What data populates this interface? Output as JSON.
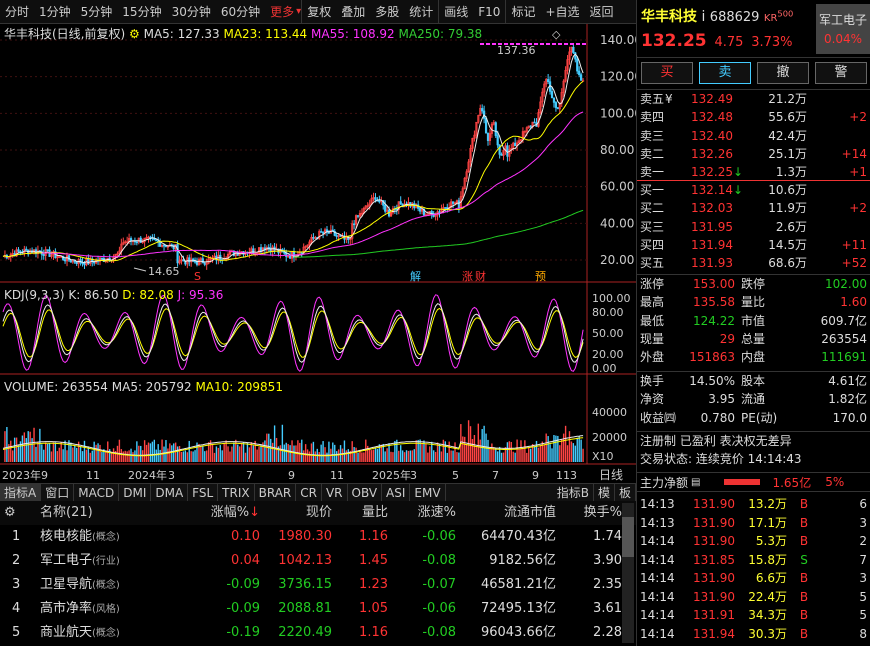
{
  "toolbar": {
    "items": [
      "分时",
      "1分钟",
      "5分钟",
      "15分钟",
      "30分钟",
      "60分钟",
      "更多",
      "复权",
      "叠加",
      "多股",
      "统计",
      "画线",
      "F10",
      "标记",
      "+自选",
      "返回"
    ]
  },
  "chart": {
    "title": "华丰科技(日线,前复权)",
    "ma5": "MA5: 127.33",
    "ma23": "MA23: 113.44",
    "ma55": "MA55: 108.92",
    "ma250": "MA250: 79.38",
    "price_axis": [
      "140.00",
      "120.00",
      "100.00",
      "80.00",
      "60.00",
      "40.00",
      "20.00"
    ],
    "high_label": "137.36",
    "low_label": "14.65",
    "markers": [
      "S",
      "解",
      "涨",
      "财",
      "预"
    ],
    "kdj_label": "KDJ(9,3,3)",
    "kdj_k": "K: 86.50",
    "kdj_d": "D: 82.08",
    "kdj_j": "J: 95.36",
    "kdj_axis": [
      "100.00",
      "80.00",
      "50.00",
      "20.00",
      "0.00"
    ],
    "vol_label": "VOLUME: 263554",
    "vol_ma5": "MA5: 205792",
    "vol_ma10": "MA10: 209851",
    "vol_axis": [
      "40000",
      "20000",
      "X10"
    ],
    "date_axis": [
      "2023年9",
      "11",
      "2024年",
      "3",
      "5",
      "7",
      "9",
      "11",
      "2025年",
      "3",
      "5",
      "7",
      "9",
      "11",
      "3"
    ],
    "date_axis_right": "日线"
  },
  "indicator_tabs": [
    "指标A",
    "窗口",
    "MACD",
    "DMI",
    "DMA",
    "FSL",
    "TRIX",
    "BRAR",
    "CR",
    "VR",
    "OBV",
    "ASI",
    "EMV"
  ],
  "indicator_right": [
    "指标B",
    "模",
    "板"
  ],
  "table": {
    "headers": [
      "名称(21)",
      "涨幅%",
      "现价",
      "量比",
      "涨速%",
      "流通市值",
      "换手%"
    ],
    "rows": [
      {
        "idx": "1",
        "name": "核电核能",
        "tag": "(概念)",
        "chg": "0.10",
        "price": "1980.30",
        "vr": "1.16",
        "spd": "-0.06",
        "cap": "64470.43亿",
        "turn": "1.74",
        "dir": "up"
      },
      {
        "idx": "2",
        "name": "军工电子",
        "tag": "(行业)",
        "chg": "0.04",
        "price": "1042.13",
        "vr": "1.45",
        "spd": "-0.08",
        "cap": "9182.56亿",
        "turn": "3.90",
        "dir": "up"
      },
      {
        "idx": "3",
        "name": "卫星导航",
        "tag": "(概念)",
        "chg": "-0.09",
        "price": "3736.15",
        "vr": "1.23",
        "spd": "-0.07",
        "cap": "46581.21亿",
        "turn": "2.35",
        "dir": "down"
      },
      {
        "idx": "4",
        "name": "高市净率",
        "tag": "(风格)",
        "chg": "-0.09",
        "price": "2088.81",
        "vr": "1.05",
        "spd": "-0.06",
        "cap": "72495.13亿",
        "turn": "3.61",
        "dir": "down"
      },
      {
        "idx": "5",
        "name": "商业航天",
        "tag": "(概念)",
        "chg": "-0.19",
        "price": "2220.49",
        "vr": "1.16",
        "spd": "-0.08",
        "cap": "96043.66亿",
        "turn": "2.28",
        "dir": "down"
      }
    ]
  },
  "quote": {
    "name": "华丰科技",
    "mark": "i",
    "code": "688629",
    "kr": "KR",
    "kr500": "500",
    "price": "132.25",
    "change": "4.75",
    "pct": "3.73%",
    "sector": "军工电子",
    "sector_pct": "0.04%",
    "buttons": [
      "买",
      "卖",
      "撤",
      "警"
    ],
    "asks": [
      {
        "label": "卖五",
        "flag": "¥",
        "price": "132.49",
        "vol": "21.2万",
        "chg": ""
      },
      {
        "label": "卖四",
        "flag": "",
        "price": "132.48",
        "vol": "55.6万",
        "chg": "+2"
      },
      {
        "label": "卖三",
        "flag": "",
        "price": "132.40",
        "vol": "42.4万",
        "chg": ""
      },
      {
        "label": "卖二",
        "flag": "",
        "price": "132.26",
        "vol": "25.1万",
        "chg": "+14"
      },
      {
        "label": "卖一",
        "flag": "",
        "price": "132.25",
        "arrow": "↓",
        "vol": "1.3万",
        "chg": "+1"
      }
    ],
    "bids": [
      {
        "label": "买一",
        "price": "132.14",
        "arrow": "↓",
        "vol": "10.6万",
        "chg": ""
      },
      {
        "label": "买二",
        "price": "132.03",
        "vol": "11.9万",
        "chg": "+2"
      },
      {
        "label": "买三",
        "price": "131.95",
        "vol": "2.6万",
        "chg": ""
      },
      {
        "label": "买四",
        "price": "131.94",
        "vol": "14.5万",
        "chg": "+11"
      },
      {
        "label": "买五",
        "price": "131.93",
        "vol": "68.6万",
        "chg": "+52"
      }
    ],
    "stats": [
      {
        "l1": "涨停",
        "v1": "153.00",
        "c1": "red",
        "l2": "跌停",
        "v2": "102.00",
        "c2": "grn"
      },
      {
        "l1": "最高",
        "v1": "135.58",
        "c1": "red",
        "l2": "量比",
        "v2": "1.60",
        "c2": "red"
      },
      {
        "l1": "最低",
        "v1": "124.22",
        "c1": "grn",
        "l2": "市值",
        "v2": "609.7亿",
        "c2": "wht"
      },
      {
        "l1": "现量",
        "v1": "29",
        "c1": "red",
        "l2": "总量",
        "v2": "263554",
        "c2": "wht"
      },
      {
        "l1": "外盘",
        "v1": "151863",
        "c1": "red",
        "l2": "内盘",
        "v2": "111691",
        "c2": "grn"
      }
    ],
    "stats2": [
      {
        "l1": "换手",
        "v1": "14.50%",
        "l2": "股本",
        "v2": "4.61亿"
      },
      {
        "l1": "净资",
        "v1": "3.95",
        "l2": "流通",
        "v2": "1.82亿"
      },
      {
        "l1": "收益㈣",
        "v1": "0.780",
        "l2": "PE(动)",
        "v2": "170.0"
      }
    ],
    "reg": "注册制 已盈利 表决权无差异",
    "trade_state": "交易状态: 连续竞价 14:14:43",
    "main_net_label": "主力净额",
    "main_net_val": "1.65亿",
    "main_net_pct": "5%",
    "ticks": [
      {
        "t": "14:13",
        "p": "131.90",
        "v": "13.2万",
        "s": "B",
        "n": "6"
      },
      {
        "t": "14:13",
        "p": "131.90",
        "v": "17.1万",
        "s": "B",
        "n": "3"
      },
      {
        "t": "14:14",
        "p": "131.90",
        "v": "5.3万",
        "s": "B",
        "n": "2"
      },
      {
        "t": "14:14",
        "p": "131.85",
        "v": "15.8万",
        "s": "S",
        "n": "7"
      },
      {
        "t": "14:14",
        "p": "131.90",
        "v": "6.6万",
        "s": "B",
        "n": "3"
      },
      {
        "t": "14:14",
        "p": "131.90",
        "v": "22.4万",
        "s": "B",
        "n": "5"
      },
      {
        "t": "14:14",
        "p": "131.91",
        "v": "34.3万",
        "s": "B",
        "n": "5"
      },
      {
        "t": "14:14",
        "p": "131.94",
        "v": "30.3万",
        "s": "B",
        "n": "8"
      }
    ]
  }
}
